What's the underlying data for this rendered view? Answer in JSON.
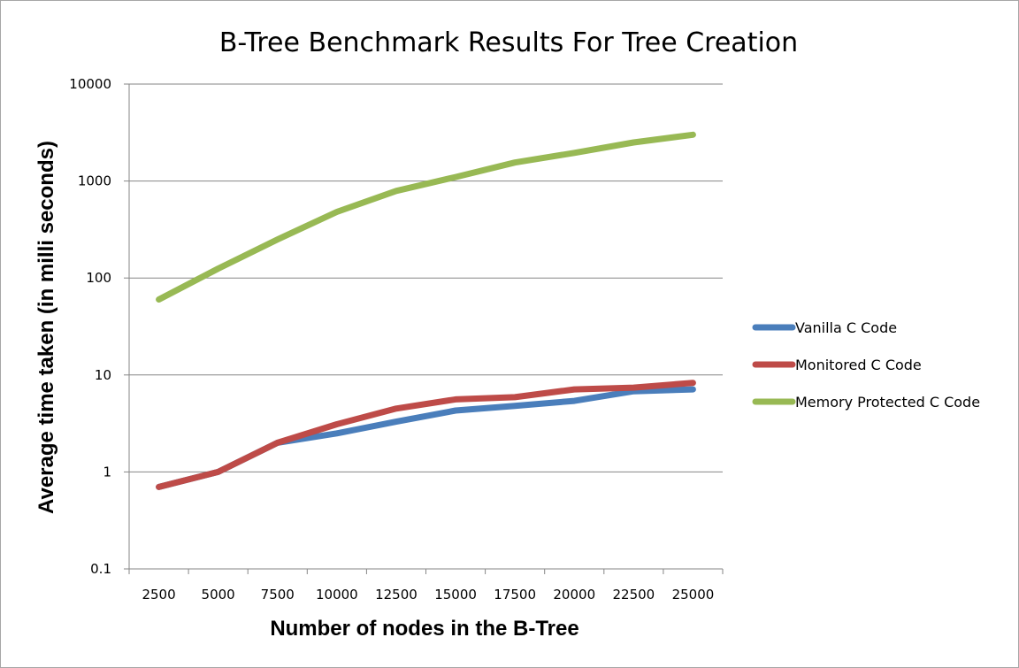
{
  "chart_data": {
    "type": "line",
    "title": "B-Tree Benchmark Results For Tree Creation",
    "xlabel": "Number of nodes in the B-Tree",
    "ylabel": "Average time taken  (in milli seconds)",
    "y_scale": "log",
    "ylim": [
      0.1,
      10000
    ],
    "y_ticks": [
      "0.1",
      "1",
      "10",
      "100",
      "1000",
      "10000"
    ],
    "y_tick_values": [
      0.1,
      1,
      10,
      100,
      1000,
      10000
    ],
    "categories": [
      "2500",
      "5000",
      "7500",
      "10000",
      "12500",
      "15000",
      "17500",
      "20000",
      "22500",
      "25000"
    ],
    "grid": true,
    "legend_position": "right",
    "series": [
      {
        "name": "Vanilla C Code",
        "color": "#4a7ebb",
        "values": [
          0.7,
          1.0,
          2.0,
          2.5,
          3.3,
          4.3,
          4.8,
          5.4,
          6.8,
          7.1
        ]
      },
      {
        "name": "Monitored C Code",
        "color": "#be4b48",
        "values": [
          0.7,
          1.0,
          2.0,
          3.1,
          4.5,
          5.6,
          5.9,
          7.1,
          7.4,
          8.3
        ]
      },
      {
        "name": "Memory Protected C Code",
        "color": "#98b954",
        "values": [
          60,
          125,
          250,
          480,
          790,
          1100,
          1550,
          1950,
          2500,
          3000
        ]
      }
    ]
  }
}
